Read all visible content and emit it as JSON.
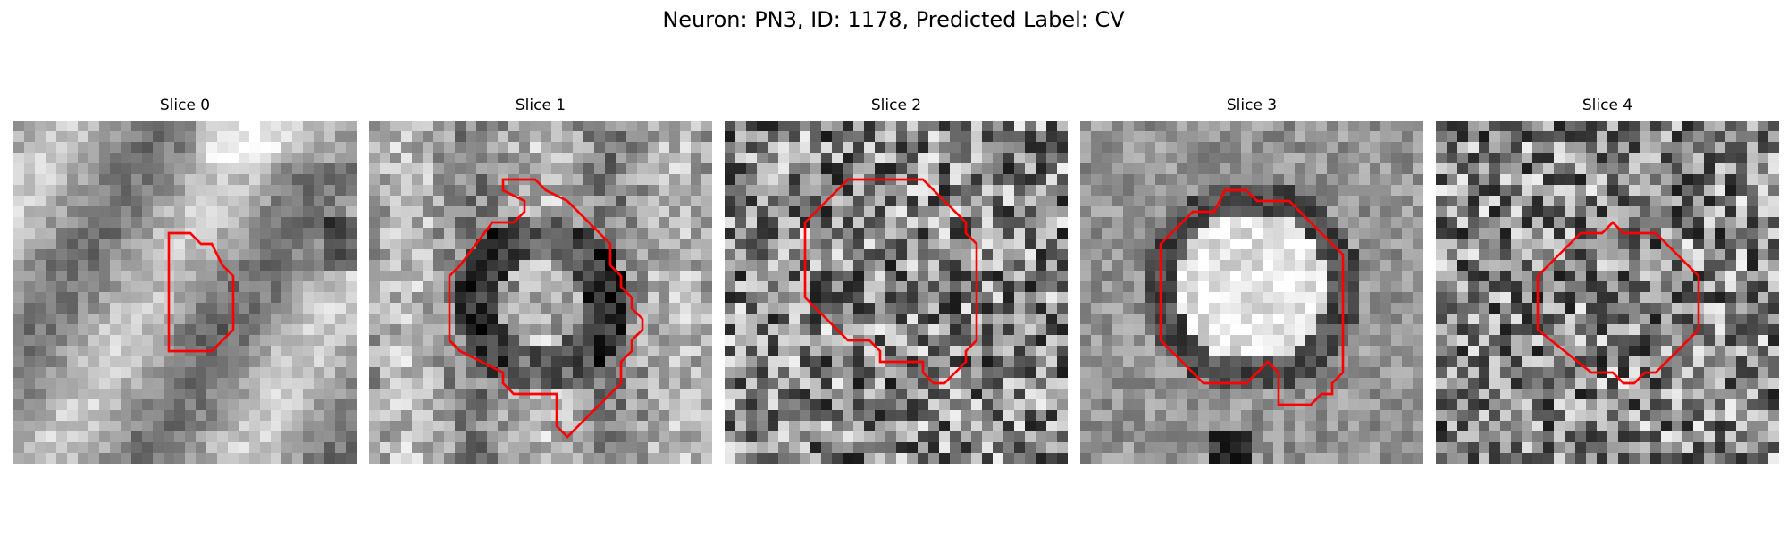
{
  "figure": {
    "title": "Neuron: PN3, ID: 1178, Predicted Label: CV",
    "contour_color": "#ff0000",
    "colormap": "gray"
  },
  "panels": [
    {
      "title": "Slice 0",
      "style": "smooth",
      "base": 0.62,
      "contrast": 0.4,
      "seed": 11
    },
    {
      "title": "Slice 1",
      "style": "ring",
      "base": 0.55,
      "contrast": 0.45,
      "seed": 23
    },
    {
      "title": "Slice 2",
      "style": "noisy",
      "base": 0.45,
      "contrast": 0.55,
      "seed": 37
    },
    {
      "title": "Slice 3",
      "style": "bright",
      "base": 0.55,
      "contrast": 0.4,
      "seed": 41
    },
    {
      "title": "Slice 4",
      "style": "noisy",
      "base": 0.5,
      "contrast": 0.45,
      "seed": 53
    }
  ]
}
